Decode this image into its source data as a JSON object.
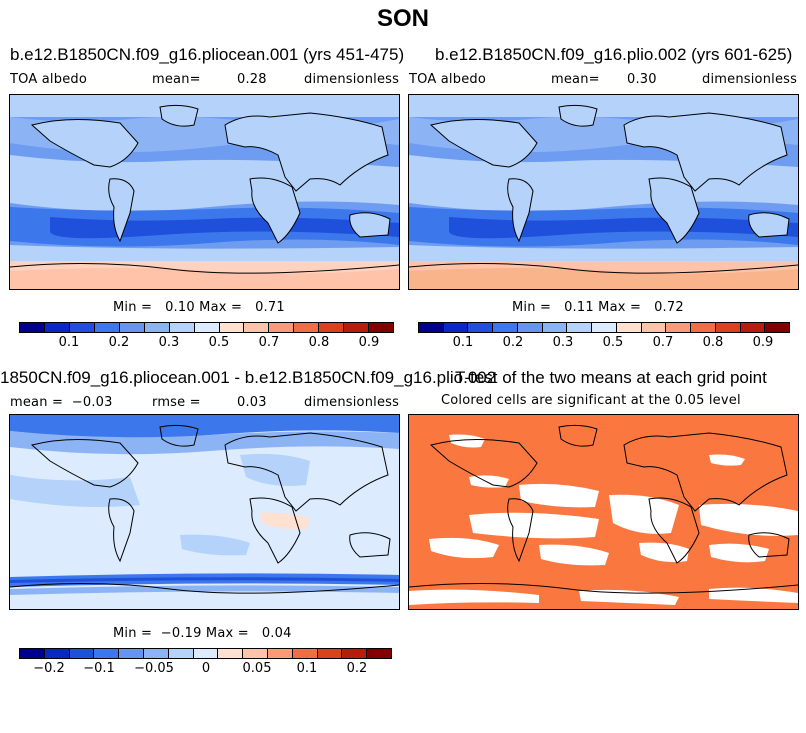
{
  "page_title": "SON",
  "panels": [
    {
      "title": "b.e12.B1850CN.f09_g16.pliocean.001 (yrs 451-475)",
      "left_label": "TOA albedo",
      "mean_label": "mean=",
      "mean_value": "0.28",
      "right_label": "dimensionless",
      "stats": "Min =   0.10 Max =   0.71"
    },
    {
      "title": "b.e12.B1850CN.f09_g16.plio.002 (yrs 601-625)",
      "left_label": "TOA albedo",
      "mean_label": "mean=",
      "mean_value": "0.30",
      "right_label": "dimensionless",
      "stats": "Min =   0.11 Max =   0.72"
    },
    {
      "title": "1850CN.f09_g16.pliocean.001 - b.e12.B1850CN.f09_g16.plio.002",
      "left_label": "mean =  −0.03",
      "mean_label": "rmse =",
      "mean_value": "0.03",
      "right_label": "dimensionless",
      "stats": "Min =  −0.19 Max =   0.04"
    },
    {
      "title": "T-test of the two means at each grid point",
      "subtitle": "Colored cells are significant at the 0.05 level"
    }
  ],
  "colorbar_top": {
    "colors": [
      "#00008c",
      "#0a28c8",
      "#1e50dc",
      "#3c78eb",
      "#6496f0",
      "#8cb4f5",
      "#b4d2fa",
      "#dcebfd",
      "#ffe1d2",
      "#ffc3aa",
      "#fa9b78",
      "#f06e46",
      "#dc411e",
      "#b41e0a",
      "#820000"
    ],
    "labels": [
      "0.1",
      "0.2",
      "0.3",
      "0.5",
      "0.7",
      "0.8",
      "0.9"
    ]
  },
  "colorbar_diff": {
    "colors": [
      "#00008c",
      "#0a28c8",
      "#1e50dc",
      "#3c78eb",
      "#6496f0",
      "#8cb4f5",
      "#b4d2fa",
      "#dcebfd",
      "#ffe1d2",
      "#ffc3aa",
      "#fa9b78",
      "#f06e46",
      "#dc411e",
      "#b41e0a",
      "#820000"
    ],
    "labels": [
      "−0.2",
      "−0.1",
      "−0.05",
      "0",
      "0.05",
      "0.1",
      "0.2"
    ]
  },
  "colors": {
    "ttest_fill": "#fa7840",
    "diff_base": "#dcebfd",
    "southern_band": "#1e50dc"
  }
}
